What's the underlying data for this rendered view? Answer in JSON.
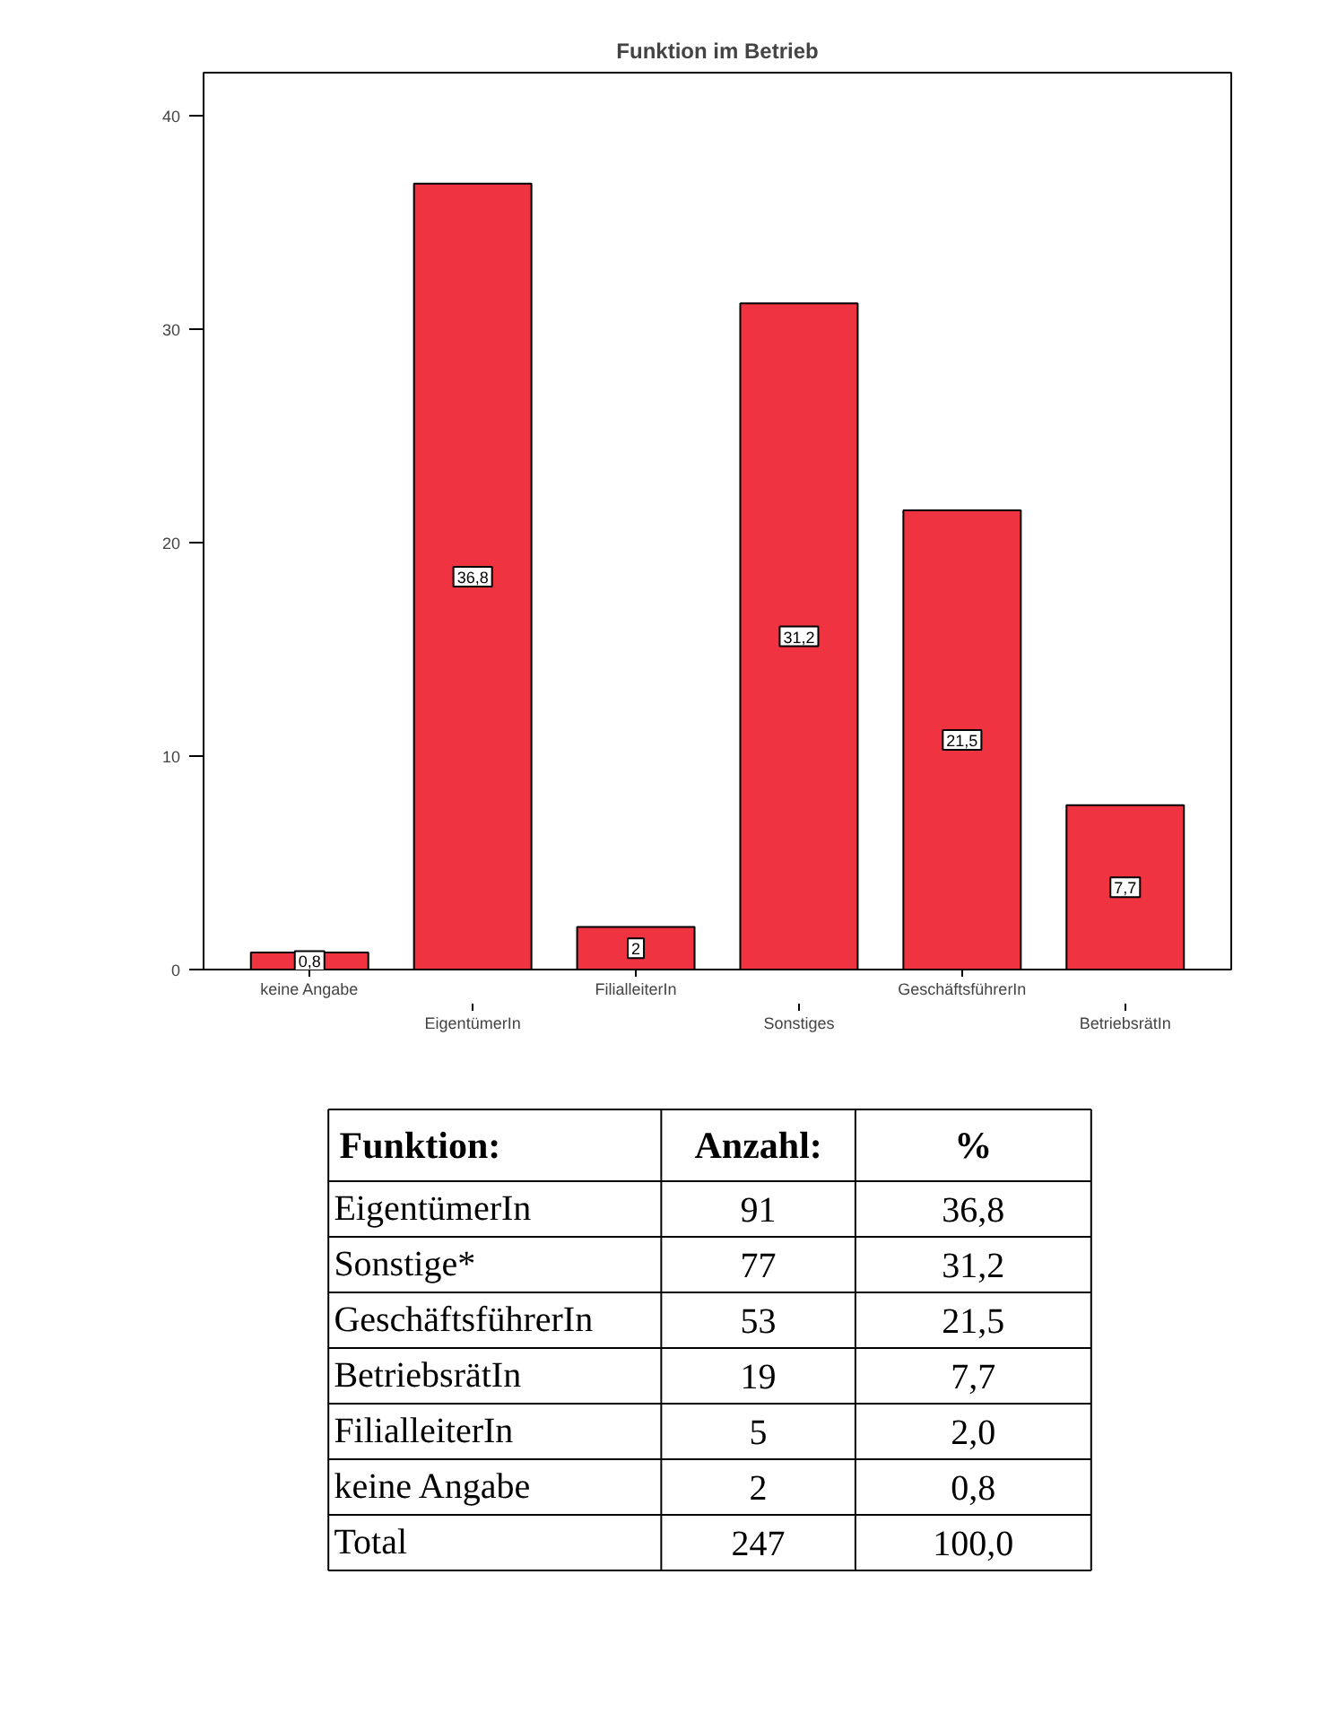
{
  "chart_data": [
    {
      "type": "bar",
      "title": "Funktion im Betrieb",
      "categories": [
        "keine Angabe",
        "EigentümerIn",
        "FilialleiterIn",
        "Sonstiges",
        "GeschäftsführerIn",
        "BetriebsrätIn"
      ],
      "values": [
        0.8,
        36.8,
        2,
        31.2,
        21.5,
        7.7
      ],
      "value_labels": [
        "0,8",
        "36,8",
        "2",
        "31,2",
        "21,5",
        "7,7"
      ],
      "color": "#ef3340",
      "ylim": [
        0,
        42
      ],
      "yticks": [
        0,
        10,
        20,
        30,
        40
      ],
      "grid": false
    },
    {
      "type": "other",
      "title": "Funktion:",
      "categories": [
        "EigentümerIn",
        "Sonstige*",
        "GeschäftsführerIn",
        "BetriebsrätIn",
        "FilialleiterIn",
        "keine Angabe",
        "Total"
      ],
      "annotations": [
        "Anzahl:",
        "%",
        "91",
        "36,8",
        "77",
        "31,2",
        "53",
        "21,5",
        "19",
        "7,7",
        "5",
        "2,0",
        "2",
        "0,8",
        "247",
        "100,0"
      ]
    }
  ]
}
